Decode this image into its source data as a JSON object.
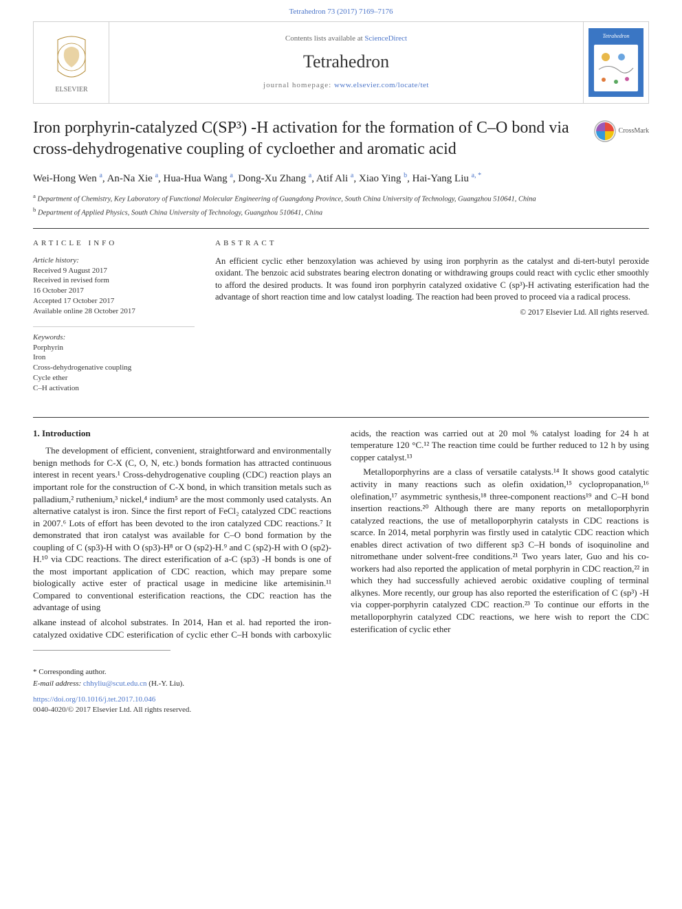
{
  "top_link": "Tetrahedron 73 (2017) 7169–7176",
  "header": {
    "sd_prefix": "Contents lists available at ",
    "sd_link": "ScienceDirect",
    "journal": "Tetrahedron",
    "hp_prefix": "journal homepage: ",
    "hp_link": "www.elsevier.com/locate/tet"
  },
  "title": "Iron porphyrin-catalyzed C(SP³) -H activation for the formation of C–O bond via cross-dehydrogenative coupling of cycloether and aromatic acid",
  "crossmark_label": "CrossMark",
  "authors_html": "Wei-Hong Wen ",
  "authors": [
    {
      "name": "Wei-Hong Wen",
      "sup": "a"
    },
    {
      "name": "An-Na Xie",
      "sup": "a"
    },
    {
      "name": "Hua-Hua Wang",
      "sup": "a"
    },
    {
      "name": "Dong-Xu Zhang",
      "sup": "a"
    },
    {
      "name": "Atif Ali",
      "sup": "a"
    },
    {
      "name": "Xiao Ying",
      "sup": "b"
    },
    {
      "name": "Hai-Yang Liu",
      "sup": "a, *"
    }
  ],
  "affiliations": {
    "a": "Department of Chemistry, Key Laboratory of Functional Molecular Engineering of Guangdong Province, South China University of Technology, Guangzhou 510641, China",
    "b": "Department of Applied Physics, South China University of Technology, Guangzhou 510641, China"
  },
  "article_info_head": "ARTICLE INFO",
  "abstract_head": "ABSTRACT",
  "history_label": "Article history:",
  "history": [
    "Received 9 August 2017",
    "Received in revised form",
    "16 October 2017",
    "Accepted 17 October 2017",
    "Available online 28 October 2017"
  ],
  "keywords_label": "Keywords:",
  "keywords": [
    "Porphyrin",
    "Iron",
    "Cross-dehydrogenative coupling",
    "Cycle ether",
    "C–H activation"
  ],
  "abstract": "An efficient cyclic ether benzoxylation was achieved by using iron porphyrin as the catalyst and di-tert-butyl peroxide oxidant. The benzoic acid substrates bearing electron donating or withdrawing groups could react with cyclic ether smoothly to afford the desired products. It was found iron porphyrin catalyzed oxidative C (sp³)-H activating esterification had the advantage of short reaction time and low catalyst loading. The reaction had been proved to proceed via a radical process.",
  "abstract_copyright": "© 2017 Elsevier Ltd. All rights reserved.",
  "section1_head": "1. Introduction",
  "para1": "The development of efficient, convenient, straightforward and environmentally benign methods for C-X (C, O, N, etc.) bonds formation has attracted continuous interest in recent years.¹ Cross-dehydrogenative coupling (CDC) reaction plays an important role for the construction of C-X bond, in which transition metals such as palladium,² ruthenium,³ nickel,⁴ indium⁵ are the most commonly used catalysts. An alternative catalyst is iron. Since the first report of FeCl₂ catalyzed CDC reactions in 2007.⁶ Lots of effort has been devoted to the iron catalyzed CDC reactions.⁷ It demonstrated that iron catalyst was available for C–O bond formation by the coupling of C (sp3)-H with O (sp3)-H⁸ or O (sp2)-H.⁹ and C (sp2)-H with O (sp2)-H.¹⁰ via CDC reactions. The direct esterification of a-C (sp3) -H bonds is one of the most important application of CDC reaction, which may prepare some biologically active ester of practical usage in medicine like artemisinin.¹¹ Compared to conventional esterification reactions, the CDC reaction has the advantage of using",
  "para2": "alkane instead of alcohol substrates. In 2014, Han et al. had reported the iron-catalyzed oxidative CDC esterification of cyclic ether C–H bonds with carboxylic acids, the reaction was carried out at 20 mol % catalyst loading for 24 h at temperature 120 °C.¹² The reaction time could be further reduced to 12 h by using copper catalyst.¹³",
  "para3": "Metalloporphyrins are a class of versatile catalysts.¹⁴ It shows good catalytic activity in many reactions such as olefin oxidation,¹⁵ cyclopropanation,¹⁶ olefination,¹⁷ asymmetric synthesis,¹⁸ three-component reactions¹⁹ and C–H bond insertion reactions.²⁰ Although there are many reports on metalloporphyrin catalyzed reactions, the use of metalloporphyrin catalysts in CDC reactions is scarce. In 2014, metal porphyrin was firstly used in catalytic CDC reaction which enables direct activation of two different sp3 C–H bonds of isoquinoline and nitromethane under solvent-free conditions.²¹ Two years later, Guo and his co-workers had also reported the application of metal porphyrin in CDC reaction,²² in which they had successfully achieved aerobic oxidative coupling of terminal alkynes. More recently, our group has also reported the esterification of C (sp³) -H via copper-porphyrin catalyzed CDC reaction.²³ To continue our efforts in the metalloporphyrin catalyzed CDC reactions, we here wish to report the CDC esterification of cyclic ether",
  "corr_label": "* Corresponding author.",
  "email_label": "E-mail address: ",
  "email": "chhyliu@scut.edu.cn",
  "email_after": " (H.-Y. Liu).",
  "doi": "https://doi.org/10.1016/j.tet.2017.10.046",
  "rights": "0040-4020/© 2017 Elsevier Ltd. All rights reserved.",
  "colors": {
    "link": "#4a74c9",
    "text": "#222222",
    "border": "#d0d0d0",
    "elsevier_orange": "#ed7d12",
    "cover_blue": "#3a76c4"
  }
}
